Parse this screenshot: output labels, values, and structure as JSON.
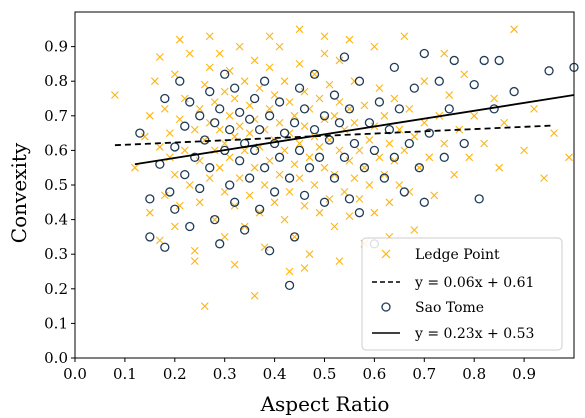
{
  "chart_data": {
    "type": "scatter",
    "xlabel": "Aspect Ratio",
    "ylabel": "Convexity",
    "xlim": [
      0.0,
      1.0
    ],
    "ylim": [
      0.0,
      1.0
    ],
    "x_ticks": [
      "0.0",
      "0.1",
      "0.2",
      "0.3",
      "0.4",
      "0.5",
      "0.6",
      "0.7",
      "0.8",
      "0.9"
    ],
    "y_ticks": [
      "0.0",
      "0.1",
      "0.2",
      "0.3",
      "0.4",
      "0.5",
      "0.6",
      "0.7",
      "0.8",
      "0.9"
    ],
    "grid": false,
    "legend_position": "lower-right",
    "series": [
      {
        "name": "Ledge Point",
        "marker": "x",
        "color": "#FDB515",
        "points": [
          [
            0.08,
            0.76
          ],
          [
            0.12,
            0.55
          ],
          [
            0.14,
            0.64
          ],
          [
            0.15,
            0.42
          ],
          [
            0.15,
            0.7
          ],
          [
            0.16,
            0.8
          ],
          [
            0.17,
            0.61
          ],
          [
            0.17,
            0.87
          ],
          [
            0.18,
            0.47
          ],
          [
            0.18,
            0.72
          ],
          [
            0.19,
            0.58
          ],
          [
            0.19,
            0.65
          ],
          [
            0.2,
            0.38
          ],
          [
            0.2,
            0.53
          ],
          [
            0.2,
            0.82
          ],
          [
            0.21,
            0.69
          ],
          [
            0.21,
            0.44
          ],
          [
            0.22,
            0.6
          ],
          [
            0.22,
            0.75
          ],
          [
            0.23,
            0.5
          ],
          [
            0.23,
            0.88
          ],
          [
            0.24,
            0.66
          ],
          [
            0.24,
            0.31
          ],
          [
            0.25,
            0.57
          ],
          [
            0.25,
            0.72
          ],
          [
            0.25,
            0.45
          ],
          [
            0.26,
            0.63
          ],
          [
            0.26,
            0.79
          ],
          [
            0.26,
            0.15
          ],
          [
            0.27,
            0.52
          ],
          [
            0.27,
            0.68
          ],
          [
            0.27,
            0.84
          ],
          [
            0.28,
            0.4
          ],
          [
            0.28,
            0.6
          ],
          [
            0.28,
            0.74
          ],
          [
            0.29,
            0.55
          ],
          [
            0.29,
            0.66
          ],
          [
            0.29,
            0.88
          ],
          [
            0.3,
            0.48
          ],
          [
            0.3,
            0.62
          ],
          [
            0.3,
            0.77
          ],
          [
            0.3,
            0.35
          ],
          [
            0.31,
            0.58
          ],
          [
            0.31,
            0.7
          ],
          [
            0.31,
            0.83
          ],
          [
            0.32,
            0.44
          ],
          [
            0.32,
            0.64
          ],
          [
            0.32,
            0.75
          ],
          [
            0.33,
            0.52
          ],
          [
            0.33,
            0.67
          ],
          [
            0.33,
            0.9
          ],
          [
            0.34,
            0.38
          ],
          [
            0.34,
            0.6
          ],
          [
            0.34,
            0.8
          ],
          [
            0.35,
            0.47
          ],
          [
            0.35,
            0.65
          ],
          [
            0.35,
            0.73
          ],
          [
            0.36,
            0.55
          ],
          [
            0.36,
            0.69
          ],
          [
            0.36,
            0.86
          ],
          [
            0.37,
            0.42
          ],
          [
            0.37,
            0.61
          ],
          [
            0.37,
            0.78
          ],
          [
            0.38,
            0.5
          ],
          [
            0.38,
            0.66
          ],
          [
            0.38,
            0.32
          ],
          [
            0.39,
            0.57
          ],
          [
            0.39,
            0.72
          ],
          [
            0.39,
            0.84
          ],
          [
            0.4,
            0.45
          ],
          [
            0.4,
            0.63
          ],
          [
            0.4,
            0.76
          ],
          [
            0.41,
            0.53
          ],
          [
            0.41,
            0.68
          ],
          [
            0.41,
            0.9
          ],
          [
            0.42,
            0.4
          ],
          [
            0.42,
            0.6
          ],
          [
            0.42,
            0.8
          ],
          [
            0.43,
            0.48
          ],
          [
            0.43,
            0.65
          ],
          [
            0.43,
            0.74
          ],
          [
            0.44,
            0.56
          ],
          [
            0.44,
            0.7
          ],
          [
            0.44,
            0.35
          ],
          [
            0.45,
            0.52
          ],
          [
            0.45,
            0.62
          ],
          [
            0.45,
            0.85
          ],
          [
            0.46,
            0.44
          ],
          [
            0.46,
            0.67
          ],
          [
            0.46,
            0.77
          ],
          [
            0.47,
            0.58
          ],
          [
            0.47,
            0.72
          ],
          [
            0.47,
            0.3
          ],
          [
            0.48,
            0.5
          ],
          [
            0.48,
            0.64
          ],
          [
            0.48,
            0.82
          ],
          [
            0.49,
            0.42
          ],
          [
            0.49,
            0.61
          ],
          [
            0.49,
            0.75
          ],
          [
            0.5,
            0.55
          ],
          [
            0.5,
            0.69
          ],
          [
            0.5,
            0.88
          ],
          [
            0.51,
            0.46
          ],
          [
            0.51,
            0.63
          ],
          [
            0.51,
            0.79
          ],
          [
            0.52,
            0.53
          ],
          [
            0.52,
            0.7
          ],
          [
            0.52,
            0.38
          ],
          [
            0.53,
            0.6
          ],
          [
            0.53,
            0.74
          ],
          [
            0.53,
            0.86
          ],
          [
            0.54,
            0.48
          ],
          [
            0.54,
            0.66
          ],
          [
            0.55,
            0.57
          ],
          [
            0.55,
            0.72
          ],
          [
            0.55,
            0.41
          ],
          [
            0.56,
            0.52
          ],
          [
            0.56,
            0.68
          ],
          [
            0.56,
            0.8
          ],
          [
            0.57,
            0.6
          ],
          [
            0.57,
            0.46
          ],
          [
            0.58,
            0.55
          ],
          [
            0.58,
            0.73
          ],
          [
            0.59,
            0.63
          ],
          [
            0.59,
            0.5
          ],
          [
            0.6,
            0.67
          ],
          [
            0.6,
            0.42
          ],
          [
            0.61,
            0.58
          ],
          [
            0.61,
            0.78
          ],
          [
            0.62,
            0.53
          ],
          [
            0.62,
            0.7
          ],
          [
            0.63,
            0.62
          ],
          [
            0.63,
            0.45
          ],
          [
            0.64,
            0.57
          ],
          [
            0.64,
            0.75
          ],
          [
            0.65,
            0.66
          ],
          [
            0.65,
            0.5
          ],
          [
            0.66,
            0.6
          ],
          [
            0.67,
            0.72
          ],
          [
            0.67,
            0.48
          ],
          [
            0.68,
            0.64
          ],
          [
            0.69,
            0.55
          ],
          [
            0.7,
            0.68
          ],
          [
            0.7,
            0.8
          ],
          [
            0.71,
            0.58
          ],
          [
            0.72,
            0.47
          ],
          [
            0.73,
            0.7
          ],
          [
            0.74,
            0.62
          ],
          [
            0.75,
            0.76
          ],
          [
            0.76,
            0.53
          ],
          [
            0.77,
            0.66
          ],
          [
            0.78,
            0.82
          ],
          [
            0.79,
            0.58
          ],
          [
            0.8,
            0.7
          ],
          [
            0.82,
            0.62
          ],
          [
            0.84,
            0.75
          ],
          [
            0.85,
            0.55
          ],
          [
            0.86,
            0.68
          ],
          [
            0.88,
            0.95
          ],
          [
            0.9,
            0.6
          ],
          [
            0.92,
            0.72
          ],
          [
            0.94,
            0.52
          ],
          [
            0.96,
            0.65
          ],
          [
            0.99,
            0.58
          ],
          [
            0.36,
            0.18
          ],
          [
            0.43,
            0.25
          ],
          [
            0.32,
            0.27
          ],
          [
            0.21,
            0.92
          ],
          [
            0.5,
            0.93
          ],
          [
            0.6,
            0.9
          ],
          [
            0.27,
            0.93
          ],
          [
            0.39,
            0.93
          ],
          [
            0.45,
            0.95
          ],
          [
            0.55,
            0.92
          ],
          [
            0.66,
            0.93
          ],
          [
            0.74,
            0.88
          ],
          [
            0.24,
            0.28
          ],
          [
            0.58,
            0.33
          ],
          [
            0.63,
            0.35
          ],
          [
            0.68,
            0.37
          ],
          [
            0.17,
            0.34
          ],
          [
            0.46,
            0.26
          ],
          [
            0.53,
            0.28
          ]
        ]
      },
      {
        "name": "Sao Tome",
        "marker": "o",
        "color": "#1F3B57",
        "points": [
          [
            0.13,
            0.65
          ],
          [
            0.15,
            0.46
          ],
          [
            0.15,
            0.35
          ],
          [
            0.17,
            0.56
          ],
          [
            0.18,
            0.75
          ],
          [
            0.18,
            0.32
          ],
          [
            0.19,
            0.48
          ],
          [
            0.2,
            0.61
          ],
          [
            0.2,
            0.43
          ],
          [
            0.21,
            0.8
          ],
          [
            0.22,
            0.67
          ],
          [
            0.22,
            0.53
          ],
          [
            0.23,
            0.74
          ],
          [
            0.23,
            0.38
          ],
          [
            0.24,
            0.58
          ],
          [
            0.25,
            0.7
          ],
          [
            0.25,
            0.49
          ],
          [
            0.26,
            0.63
          ],
          [
            0.27,
            0.77
          ],
          [
            0.27,
            0.55
          ],
          [
            0.28,
            0.4
          ],
          [
            0.28,
            0.68
          ],
          [
            0.29,
            0.72
          ],
          [
            0.29,
            0.33
          ],
          [
            0.3,
            0.6
          ],
          [
            0.3,
            0.82
          ],
          [
            0.31,
            0.5
          ],
          [
            0.31,
            0.66
          ],
          [
            0.32,
            0.78
          ],
          [
            0.32,
            0.45
          ],
          [
            0.33,
            0.57
          ],
          [
            0.33,
            0.71
          ],
          [
            0.34,
            0.62
          ],
          [
            0.34,
            0.37
          ],
          [
            0.35,
            0.69
          ],
          [
            0.35,
            0.52
          ],
          [
            0.36,
            0.75
          ],
          [
            0.36,
            0.6
          ],
          [
            0.37,
            0.43
          ],
          [
            0.37,
            0.66
          ],
          [
            0.38,
            0.8
          ],
          [
            0.38,
            0.55
          ],
          [
            0.39,
            0.7
          ],
          [
            0.39,
            0.31
          ],
          [
            0.4,
            0.62
          ],
          [
            0.4,
            0.48
          ],
          [
            0.41,
            0.74
          ],
          [
            0.41,
            0.58
          ],
          [
            0.42,
            0.65
          ],
          [
            0.43,
            0.21
          ],
          [
            0.43,
            0.52
          ],
          [
            0.44,
            0.68
          ],
          [
            0.44,
            0.35
          ],
          [
            0.45,
            0.78
          ],
          [
            0.45,
            0.6
          ],
          [
            0.46,
            0.47
          ],
          [
            0.46,
            0.72
          ],
          [
            0.47,
            0.55
          ],
          [
            0.48,
            0.66
          ],
          [
            0.48,
            0.82
          ],
          [
            0.49,
            0.58
          ],
          [
            0.5,
            0.7
          ],
          [
            0.5,
            0.45
          ],
          [
            0.51,
            0.63
          ],
          [
            0.52,
            0.76
          ],
          [
            0.52,
            0.52
          ],
          [
            0.53,
            0.68
          ],
          [
            0.54,
            0.58
          ],
          [
            0.54,
            0.87
          ],
          [
            0.55,
            0.46
          ],
          [
            0.55,
            0.72
          ],
          [
            0.56,
            0.62
          ],
          [
            0.57,
            0.8
          ],
          [
            0.57,
            0.42
          ],
          [
            0.58,
            0.55
          ],
          [
            0.59,
            0.68
          ],
          [
            0.6,
            0.33
          ],
          [
            0.6,
            0.6
          ],
          [
            0.61,
            0.74
          ],
          [
            0.62,
            0.52
          ],
          [
            0.63,
            0.66
          ],
          [
            0.64,
            0.84
          ],
          [
            0.64,
            0.58
          ],
          [
            0.65,
            0.72
          ],
          [
            0.66,
            0.48
          ],
          [
            0.67,
            0.62
          ],
          [
            0.68,
            0.78
          ],
          [
            0.69,
            0.55
          ],
          [
            0.7,
            0.88
          ],
          [
            0.7,
            0.45
          ],
          [
            0.71,
            0.65
          ],
          [
            0.73,
            0.8
          ],
          [
            0.74,
            0.58
          ],
          [
            0.75,
            0.72
          ],
          [
            0.76,
            0.86
          ],
          [
            0.78,
            0.62
          ],
          [
            0.8,
            0.79
          ],
          [
            0.81,
            0.46
          ],
          [
            0.82,
            0.86
          ],
          [
            0.84,
            0.72
          ],
          [
            0.85,
            0.86
          ],
          [
            0.88,
            0.77
          ],
          [
            0.95,
            0.83
          ],
          [
            1.0,
            0.84
          ]
        ]
      }
    ],
    "fits": [
      {
        "legend": "y = 0.06x + 0.61",
        "style": "dashed",
        "color": "#000000",
        "x": [
          0.08,
          0.96
        ],
        "y": [
          0.615,
          0.672
        ]
      },
      {
        "legend": "y = 0.23x + 0.53",
        "style": "solid",
        "color": "#000000",
        "x": [
          0.12,
          1.0
        ],
        "y": [
          0.56,
          0.76
        ]
      }
    ]
  }
}
